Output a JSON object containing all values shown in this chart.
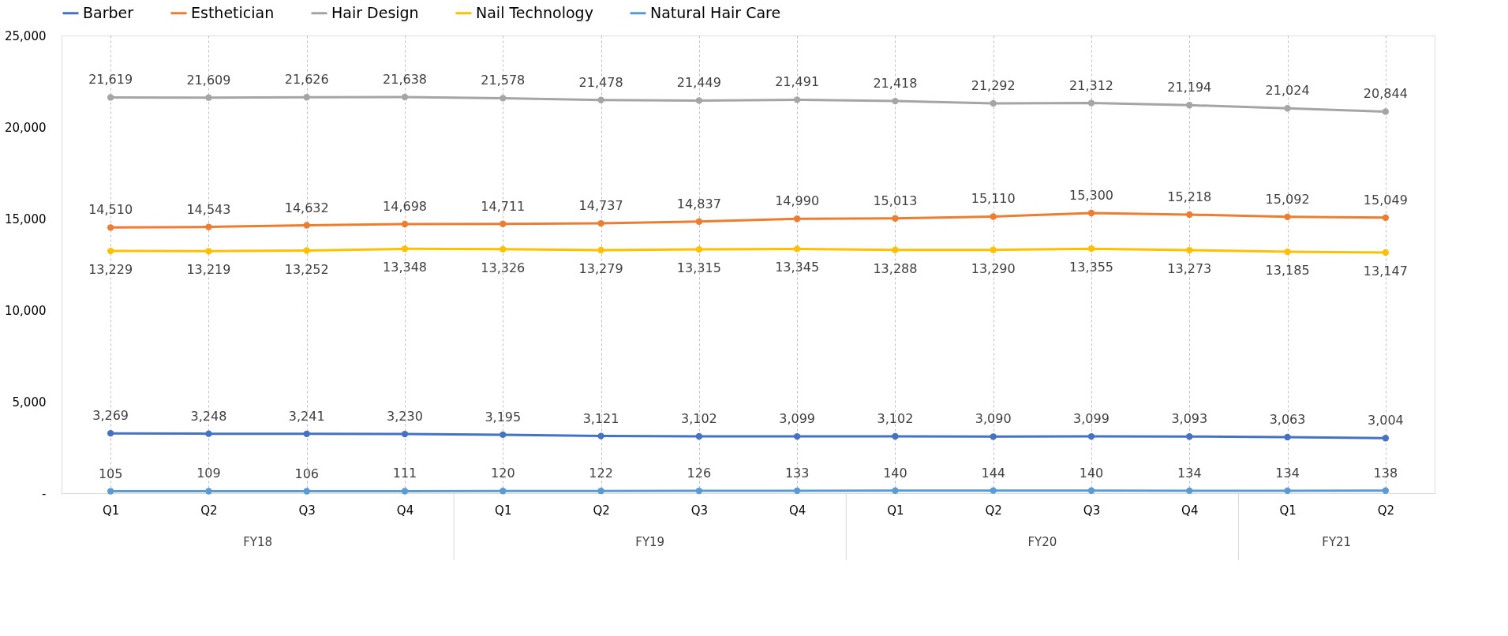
{
  "chart_data": {
    "type": "line",
    "categories": [
      "Q1",
      "Q2",
      "Q3",
      "Q4",
      "Q1",
      "Q2",
      "Q3",
      "Q4",
      "Q1",
      "Q2",
      "Q3",
      "Q4",
      "Q1",
      "Q2"
    ],
    "series": [
      {
        "name": "Barber",
        "color": "#4472c4",
        "values": [
          3269,
          3248,
          3241,
          3230,
          3195,
          3121,
          3102,
          3099,
          3102,
          3090,
          3099,
          3093,
          3063,
          3004
        ],
        "value_labels": [
          "3,269",
          "3,248",
          "3,241",
          "3,230",
          "3,195",
          "3,121",
          "3,102",
          "3,099",
          "3,102",
          "3,090",
          "3,099",
          "3,093",
          "3,063",
          "3,004"
        ]
      },
      {
        "name": "Esthetician",
        "color": "#ed7d31",
        "values": [
          14510,
          14543,
          14632,
          14698,
          14711,
          14737,
          14837,
          14990,
          15013,
          15110,
          15300,
          15218,
          15092,
          15049
        ],
        "value_labels": [
          "14,510",
          "14,543",
          "14,632",
          "14,698",
          "14,711",
          "14,737",
          "14,837",
          "14,990",
          "15,013",
          "15,110",
          "15,300",
          "15,218",
          "15,092",
          "15,049"
        ]
      },
      {
        "name": "Hair Design",
        "color": "#a5a5a5",
        "values": [
          21619,
          21609,
          21626,
          21638,
          21578,
          21478,
          21449,
          21491,
          21418,
          21292,
          21312,
          21194,
          21024,
          20844
        ],
        "value_labels": [
          "21,619",
          "21,609",
          "21,626",
          "21,638",
          "21,578",
          "21,478",
          "21,449",
          "21,491",
          "21,418",
          "21,292",
          "21,312",
          "21,194",
          "21,024",
          "20,844"
        ]
      },
      {
        "name": "Nail Technology",
        "color": "#ffc000",
        "values": [
          13229,
          13219,
          13252,
          13348,
          13326,
          13279,
          13315,
          13345,
          13288,
          13290,
          13355,
          13273,
          13185,
          13147
        ],
        "value_labels": [
          "13,229",
          "13,219",
          "13,252",
          "13,348",
          "13,326",
          "13,279",
          "13,315",
          "13,345",
          "13,288",
          "13,290",
          "13,355",
          "13,273",
          "13,185",
          "13,147"
        ]
      },
      {
        "name": "Natural Hair Care",
        "color": "#5b9bd5",
        "values": [
          105,
          109,
          106,
          111,
          120,
          122,
          126,
          133,
          140,
          144,
          140,
          134,
          134,
          138
        ],
        "value_labels": [
          "105",
          "109",
          "106",
          "111",
          "120",
          "122",
          "126",
          "133",
          "140",
          "144",
          "140",
          "134",
          "134",
          "138"
        ]
      }
    ],
    "ylim": [
      0,
      25000
    ],
    "yticks": [
      {
        "value": 0,
        "label": "-"
      },
      {
        "value": 5000,
        "label": "5,000"
      },
      {
        "value": 10000,
        "label": "10,000"
      },
      {
        "value": 15000,
        "label": "15,000"
      },
      {
        "value": 20000,
        "label": "20,000"
      },
      {
        "value": 25000,
        "label": "25,000"
      }
    ],
    "annotations": [
      "FY18",
      "FY19",
      "FY20",
      "FY21"
    ],
    "grid": "x",
    "legend": "top",
    "marker": "circle",
    "line_style": "solid"
  }
}
